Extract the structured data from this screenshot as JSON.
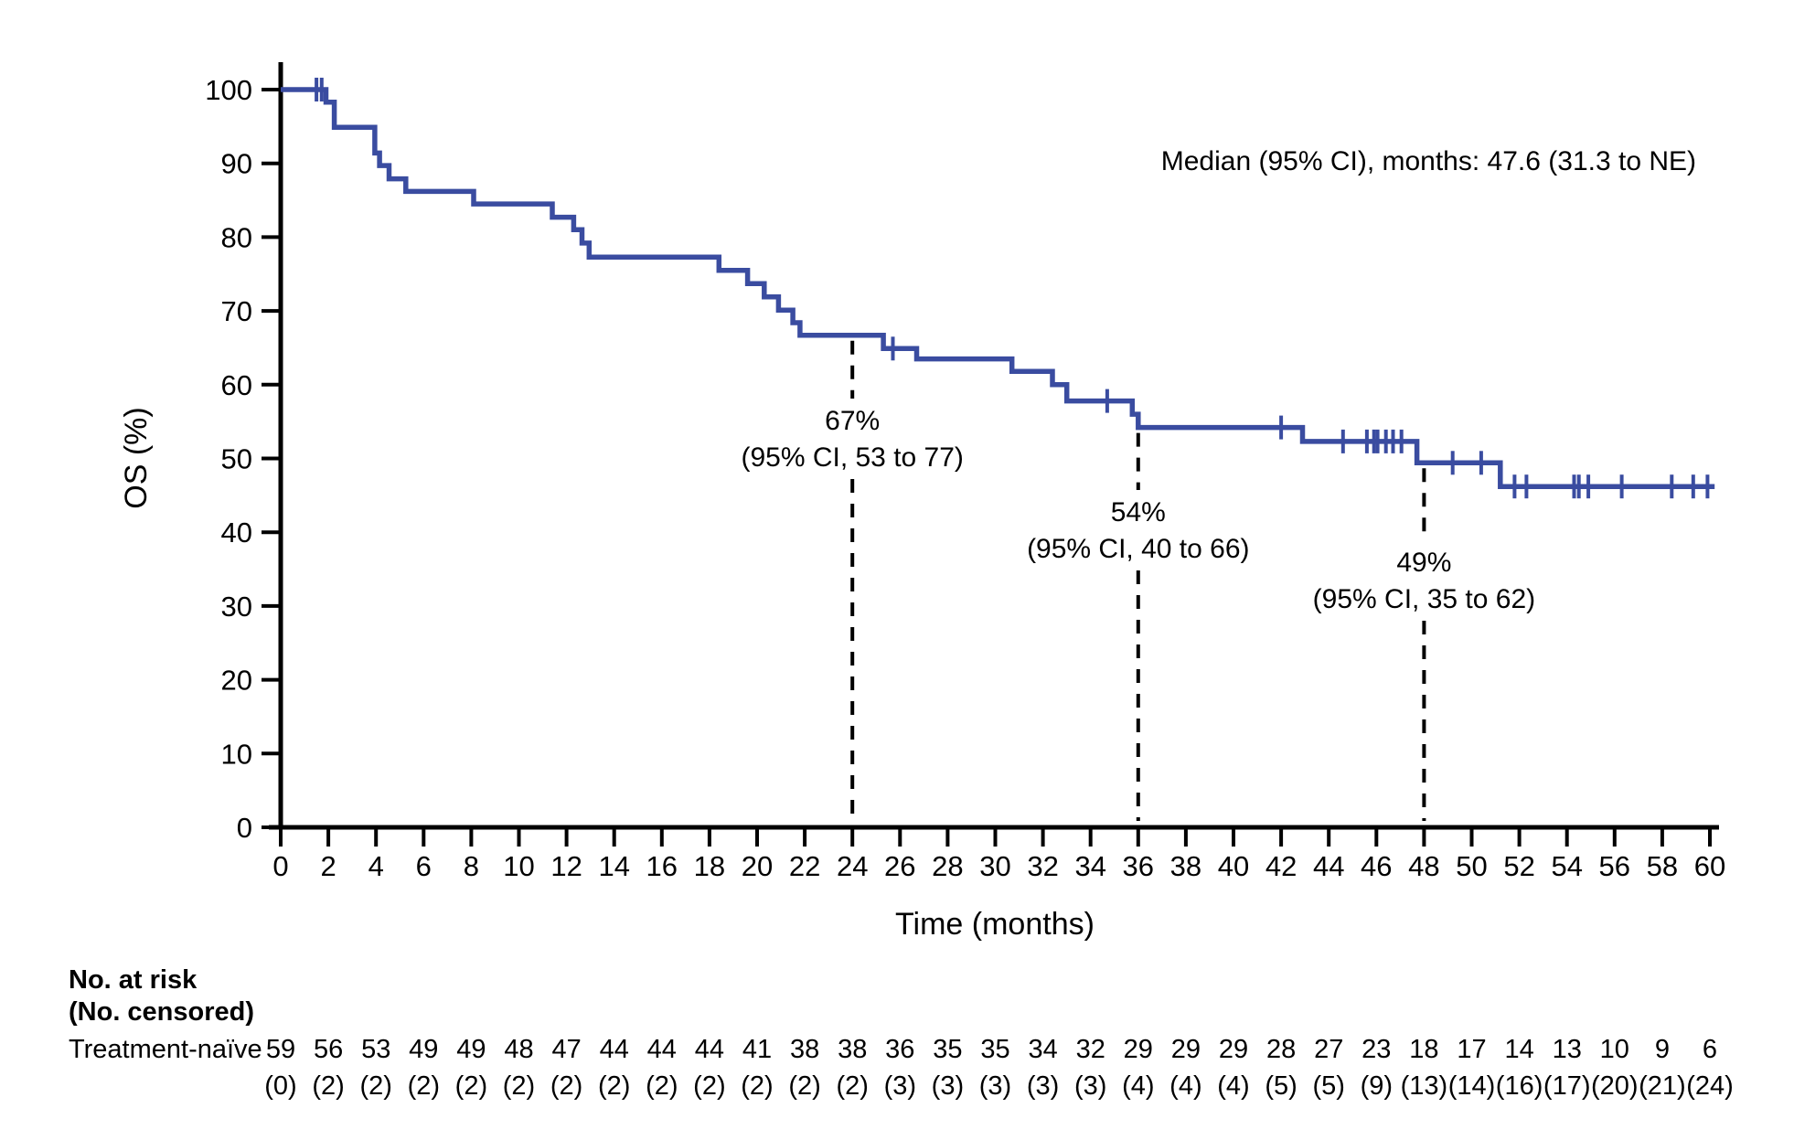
{
  "page": {
    "background": "#ffffff"
  },
  "chart_data": {
    "type": "line",
    "subtype": "kaplan-meier-step-curve",
    "title": "",
    "xlabel": "Time (months)",
    "ylabel": "OS (%)",
    "xlim": [
      0,
      60
    ],
    "ylim": [
      0,
      100
    ],
    "grid": false,
    "legend_position": "none",
    "xticks": [
      0,
      2,
      4,
      6,
      8,
      10,
      12,
      14,
      16,
      18,
      20,
      22,
      24,
      26,
      28,
      30,
      32,
      34,
      36,
      38,
      40,
      42,
      44,
      46,
      48,
      50,
      52,
      54,
      56,
      58,
      60
    ],
    "yticks": [
      0,
      10,
      20,
      30,
      40,
      50,
      60,
      70,
      80,
      90,
      100
    ],
    "median_annotation": "Median  (95% CI), months:  47.6 (31.3 to NE)",
    "series": [
      {
        "name": "Treatment-naïve",
        "color": "#3A4CA0",
        "end_month": 60.2,
        "steps": [
          [
            0,
            100
          ],
          [
            1.9,
            98.3
          ],
          [
            2.25,
            94.9
          ],
          [
            3.95,
            91.4
          ],
          [
            4.15,
            89.7
          ],
          [
            4.55,
            87.9
          ],
          [
            5.25,
            86.2
          ],
          [
            8.1,
            84.5
          ],
          [
            11.4,
            82.7
          ],
          [
            12.3,
            81.0
          ],
          [
            12.65,
            79.2
          ],
          [
            12.95,
            77.3
          ],
          [
            18.4,
            75.5
          ],
          [
            19.6,
            73.7
          ],
          [
            20.3,
            71.9
          ],
          [
            20.9,
            70.1
          ],
          [
            21.5,
            68.4
          ],
          [
            21.8,
            66.7
          ],
          [
            25.3,
            64.9
          ],
          [
            26.7,
            63.5
          ],
          [
            30.7,
            61.8
          ],
          [
            32.4,
            60.0
          ],
          [
            33.0,
            57.8
          ],
          [
            35.75,
            56.0
          ],
          [
            36.0,
            54.2
          ],
          [
            42.9,
            52.3
          ],
          [
            47.7,
            49.4
          ],
          [
            51.2,
            46.2
          ]
        ],
        "censor_marks": [
          [
            1.5,
            100
          ],
          [
            1.72,
            100
          ],
          [
            25.7,
            64.9
          ],
          [
            34.7,
            57.8
          ],
          [
            42.0,
            54.2
          ],
          [
            44.6,
            52.3
          ],
          [
            45.6,
            52.3
          ],
          [
            45.9,
            52.3
          ],
          [
            46.05,
            52.3
          ],
          [
            46.4,
            52.3
          ],
          [
            46.7,
            52.3
          ],
          [
            47.05,
            52.3
          ],
          [
            49.2,
            49.4
          ],
          [
            50.4,
            49.4
          ],
          [
            51.8,
            46.2
          ],
          [
            52.3,
            46.2
          ],
          [
            54.3,
            46.2
          ],
          [
            54.5,
            46.2
          ],
          [
            54.9,
            46.2
          ],
          [
            56.3,
            46.2
          ],
          [
            58.4,
            46.2
          ],
          [
            59.3,
            46.2
          ],
          [
            59.9,
            46.2
          ]
        ]
      }
    ],
    "landmark_annotations": [
      {
        "month": 24,
        "percent": 66.7,
        "percent_label": "67%",
        "ci_label": "(95% CI, 53 to 77)"
      },
      {
        "month": 36,
        "percent": 54.2,
        "percent_label": "54%",
        "ci_label": "(95% CI, 40 to 66)"
      },
      {
        "month": 48,
        "percent": 49.4,
        "percent_label": "49%",
        "ci_label": "(95% CI, 35 to 62)"
      }
    ]
  },
  "risk_table": {
    "header_line1": "No. at risk",
    "header_line2": "(No. censored)",
    "rows": [
      {
        "label": "Treatment-naïve",
        "times": [
          0,
          2,
          4,
          6,
          8,
          10,
          12,
          14,
          16,
          18,
          20,
          22,
          24,
          26,
          28,
          30,
          32,
          34,
          36,
          38,
          40,
          42,
          44,
          46,
          48,
          50,
          52,
          54,
          56,
          58,
          60
        ],
        "at_risk": [
          59,
          56,
          53,
          49,
          49,
          48,
          47,
          44,
          44,
          44,
          41,
          38,
          38,
          36,
          35,
          35,
          34,
          32,
          29,
          29,
          29,
          28,
          27,
          23,
          18,
          17,
          14,
          13,
          10,
          9,
          6
        ],
        "censored": [
          "(0)",
          "(2)",
          "(2)",
          "(2)",
          "(2)",
          "(2)",
          "(2)",
          "(2)",
          "(2)",
          "(2)",
          "(2)",
          "(2)",
          "(2)",
          "(3)",
          "(3)",
          "(3)",
          "(3)",
          "(3)",
          "(4)",
          "(4)",
          "(4)",
          "(5)",
          "(5)",
          "(9)",
          "(13)",
          "(14)",
          "(16)",
          "(17)",
          "(20)",
          "(21)",
          "(24)"
        ]
      }
    ]
  }
}
